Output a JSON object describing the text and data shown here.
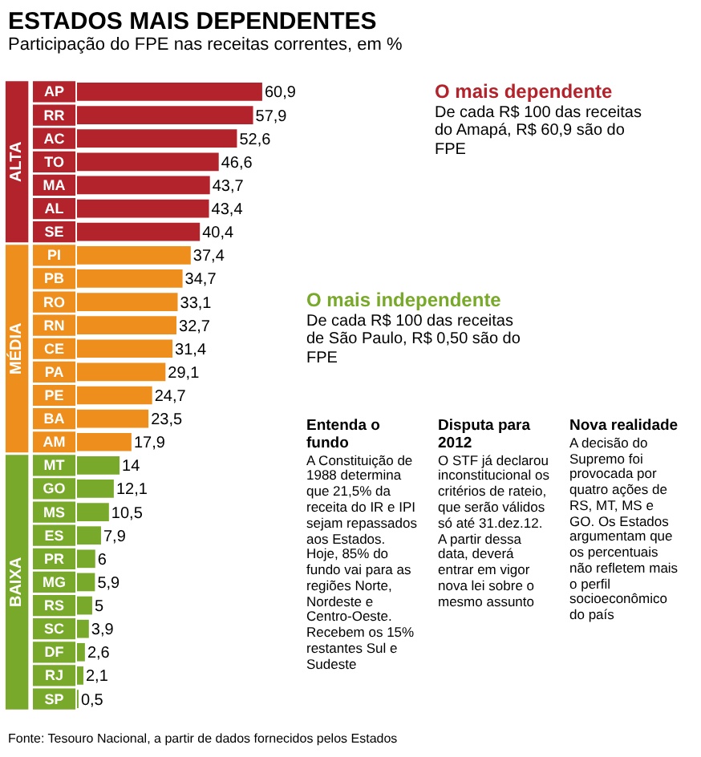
{
  "chart_data": {
    "type": "bar",
    "orientation": "horizontal",
    "title": "ESTADOS MAIS DEPENDENTES",
    "subtitle": "Participação do FPE nas receitas correntes, em %",
    "categories": [
      "AP",
      "RR",
      "AC",
      "TO",
      "MA",
      "AL",
      "SE",
      "PI",
      "PB",
      "RO",
      "RN",
      "CE",
      "PA",
      "PE",
      "BA",
      "AM",
      "MT",
      "GO",
      "MS",
      "ES",
      "PR",
      "MG",
      "RS",
      "SC",
      "DF",
      "RJ",
      "SP"
    ],
    "values": [
      60.9,
      57.9,
      52.6,
      46.6,
      43.7,
      43.4,
      40.4,
      37.4,
      34.7,
      33.1,
      32.7,
      31.4,
      29.1,
      24.7,
      23.5,
      17.9,
      14,
      12.1,
      10.5,
      7.9,
      6,
      5.9,
      5,
      3.9,
      2.6,
      2.1,
      0.5
    ],
    "value_labels": [
      "60,9",
      "57,9",
      "52,6",
      "46,6",
      "43,7",
      "43,4",
      "40,4",
      "37,4",
      "34,7",
      "33,1",
      "32,7",
      "31,4",
      "29,1",
      "24,7",
      "23,5",
      "17,9",
      "14",
      "12,1",
      "10,5",
      "7,9",
      "6",
      "5,9",
      "5",
      "3,9",
      "2,6",
      "2,1",
      "0,5"
    ],
    "colors": [
      "#b3232b",
      "#b3232b",
      "#b3232b",
      "#b3232b",
      "#b3232b",
      "#b3232b",
      "#b3232b",
      "#ee8e1c",
      "#ee8e1c",
      "#ee8e1c",
      "#ee8e1c",
      "#ee8e1c",
      "#ee8e1c",
      "#ee8e1c",
      "#ee8e1c",
      "#ee8e1c",
      "#79a92b",
      "#79a92b",
      "#79a92b",
      "#79a92b",
      "#79a92b",
      "#79a92b",
      "#79a92b",
      "#79a92b",
      "#79a92b",
      "#79a92b",
      "#79a92b"
    ],
    "annotations": [
      "ALTA",
      "MÉDIA",
      "BAIXA",
      "O mais dependente",
      "De cada R$ 100 das receitas do Amapá, R$ 60,9 são do FPE",
      "O mais independente",
      "De cada R$ 100 das receitas de São Paulo, R$ 0,50 são do FPE",
      "Entenda o fundo",
      "A Constituição de 1988 determina que 21,5% da receita do IR e IPI sejam repassados aos Estados. Hoje, 85% do fundo vai para as regiões Norte, Nordeste e Centro-Oeste. Recebem os 15% restantes Sul e Sudeste",
      "Disputa para 2012",
      "O STF já declarou inconstitucional os critérios de rateio, que serão válidos só até 31.dez.12. A partir dessa data, deverá entrar em vigor nova lei sobre o mesmo assunto",
      "Nova realidade",
      "A decisão do Supremo foi provocada por quatro ações de RS, MT, MS e GO. Os Estados argumentam que os percentuais não refletem mais o perfil socioeconômico do país",
      "Fonte: Tesouro Nacional, a partir de dados fornecidos pelos Estados"
    ]
  }
}
